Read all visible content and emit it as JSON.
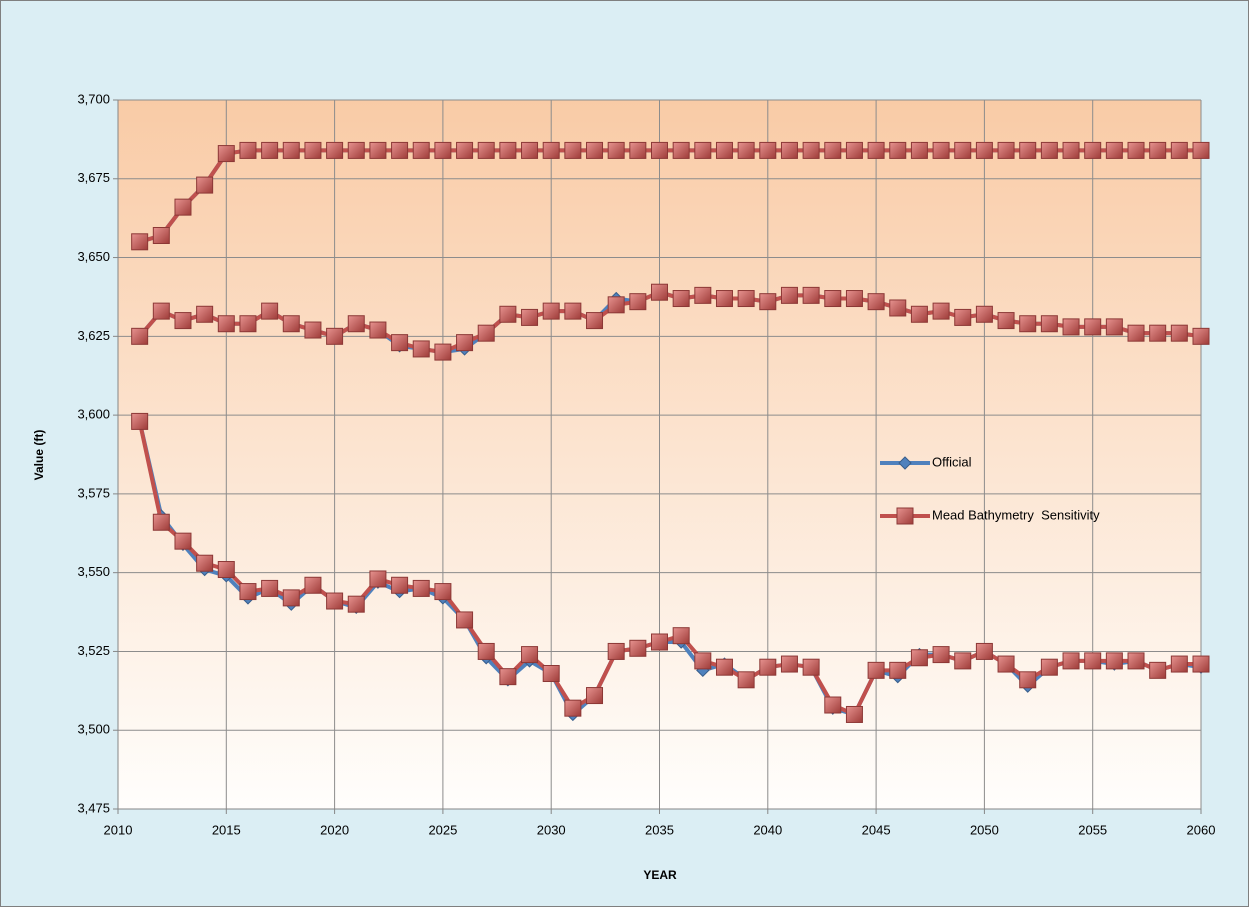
{
  "chart_data": {
    "type": "line",
    "x_label": "YEAR",
    "y_label": "Value (ft)",
    "x": [
      2011,
      2012,
      2013,
      2014,
      2015,
      2016,
      2017,
      2018,
      2019,
      2020,
      2021,
      2022,
      2023,
      2024,
      2025,
      2026,
      2027,
      2028,
      2029,
      2030,
      2031,
      2032,
      2033,
      2034,
      2035,
      2036,
      2037,
      2038,
      2039,
      2040,
      2041,
      2042,
      2043,
      2044,
      2045,
      2046,
      2047,
      2048,
      2049,
      2050,
      2051,
      2052,
      2053,
      2054,
      2055,
      2056,
      2057,
      2058,
      2059,
      2060
    ],
    "xlim": [
      2010,
      2060
    ],
    "xticks": [
      2010,
      2015,
      2020,
      2025,
      2030,
      2035,
      2040,
      2045,
      2050,
      2055,
      2060
    ],
    "ylim": [
      3475,
      3700
    ],
    "yticks": [
      {
        "value": 3475,
        "label": "3,475"
      },
      {
        "value": 3500,
        "label": "3,500"
      },
      {
        "value": 3525,
        "label": "3,525"
      },
      {
        "value": 3550,
        "label": "3,550"
      },
      {
        "value": 3575,
        "label": "3,575"
      },
      {
        "value": 3600,
        "label": "3,600"
      },
      {
        "value": 3625,
        "label": "3,625"
      },
      {
        "value": 3650,
        "label": "3,650"
      },
      {
        "value": 3675,
        "label": "3,675"
      },
      {
        "value": 3700,
        "label": "3,700"
      }
    ],
    "grid": true,
    "series": [
      {
        "name": "Official",
        "color": "#4f81bd",
        "marker": "diamond",
        "values": [
          [
            3655,
            3657,
            3666,
            3673,
            3683,
            3684,
            3684,
            3684,
            3684,
            3684,
            3684,
            3684,
            3684,
            3684,
            3684,
            3684,
            3684,
            3684,
            3684,
            3684,
            3684,
            3684,
            3684,
            3684,
            3684,
            3684,
            3684,
            3684,
            3684,
            3684,
            3684,
            3684,
            3684,
            3684,
            3684,
            3684,
            3684,
            3684,
            3684,
            3684,
            3684,
            3684,
            3684,
            3684,
            3684,
            3684,
            3684,
            3684,
            3684,
            3684
          ],
          [
            3625,
            3633,
            3630,
            3632,
            3629,
            3629,
            3633,
            3629,
            3627,
            3625,
            3629,
            3627,
            3622,
            3621,
            3620,
            3621,
            3626,
            3632,
            3631,
            3633,
            3633,
            3630,
            3637,
            3636,
            3639,
            3637,
            3638,
            3637,
            3637,
            3636,
            3638,
            3638,
            3637,
            3637,
            3636,
            3634,
            3632,
            3633,
            3631,
            3632,
            3630,
            3629,
            3629,
            3628,
            3628,
            3628,
            3626,
            3626,
            3626,
            3625
          ],
          [
            3598,
            3568,
            3559,
            3551,
            3549,
            3542,
            3545,
            3540,
            3546,
            3541,
            3539,
            3547,
            3544,
            3545,
            3542,
            3535,
            3523,
            3516,
            3522,
            3518,
            3505,
            3511,
            3525,
            3526,
            3528,
            3528,
            3519,
            3521,
            3516,
            3520,
            3521,
            3520,
            3507,
            3505,
            3519,
            3517,
            3524,
            3524,
            3522,
            3525,
            3521,
            3514,
            3520,
            3522,
            3522,
            3521,
            3522,
            3519,
            3521,
            3520
          ]
        ]
      },
      {
        "name": "Mead Bathymetry  Sensitivity",
        "color": "#c0504d",
        "marker": "square",
        "values": [
          [
            3655,
            3657,
            3666,
            3673,
            3683,
            3684,
            3684,
            3684,
            3684,
            3684,
            3684,
            3684,
            3684,
            3684,
            3684,
            3684,
            3684,
            3684,
            3684,
            3684,
            3684,
            3684,
            3684,
            3684,
            3684,
            3684,
            3684,
            3684,
            3684,
            3684,
            3684,
            3684,
            3684,
            3684,
            3684,
            3684,
            3684,
            3684,
            3684,
            3684,
            3684,
            3684,
            3684,
            3684,
            3684,
            3684,
            3684,
            3684,
            3684,
            3684
          ],
          [
            3625,
            3633,
            3630,
            3632,
            3629,
            3629,
            3633,
            3629,
            3627,
            3625,
            3629,
            3627,
            3623,
            3621,
            3620,
            3623,
            3626,
            3632,
            3631,
            3633,
            3633,
            3630,
            3635,
            3636,
            3639,
            3637,
            3638,
            3637,
            3637,
            3636,
            3638,
            3638,
            3637,
            3637,
            3636,
            3634,
            3632,
            3633,
            3631,
            3632,
            3630,
            3629,
            3629,
            3628,
            3628,
            3628,
            3626,
            3626,
            3626,
            3625
          ],
          [
            3598,
            3566,
            3560,
            3553,
            3551,
            3544,
            3545,
            3542,
            3546,
            3541,
            3540,
            3548,
            3546,
            3545,
            3544,
            3535,
            3525,
            3517,
            3524,
            3518,
            3507,
            3511,
            3525,
            3526,
            3528,
            3530,
            3522,
            3520,
            3516,
            3520,
            3521,
            3520,
            3508,
            3505,
            3519,
            3519,
            3523,
            3524,
            3522,
            3525,
            3521,
            3516,
            3520,
            3522,
            3522,
            3522,
            3522,
            3519,
            3521,
            3521
          ]
        ]
      }
    ]
  }
}
